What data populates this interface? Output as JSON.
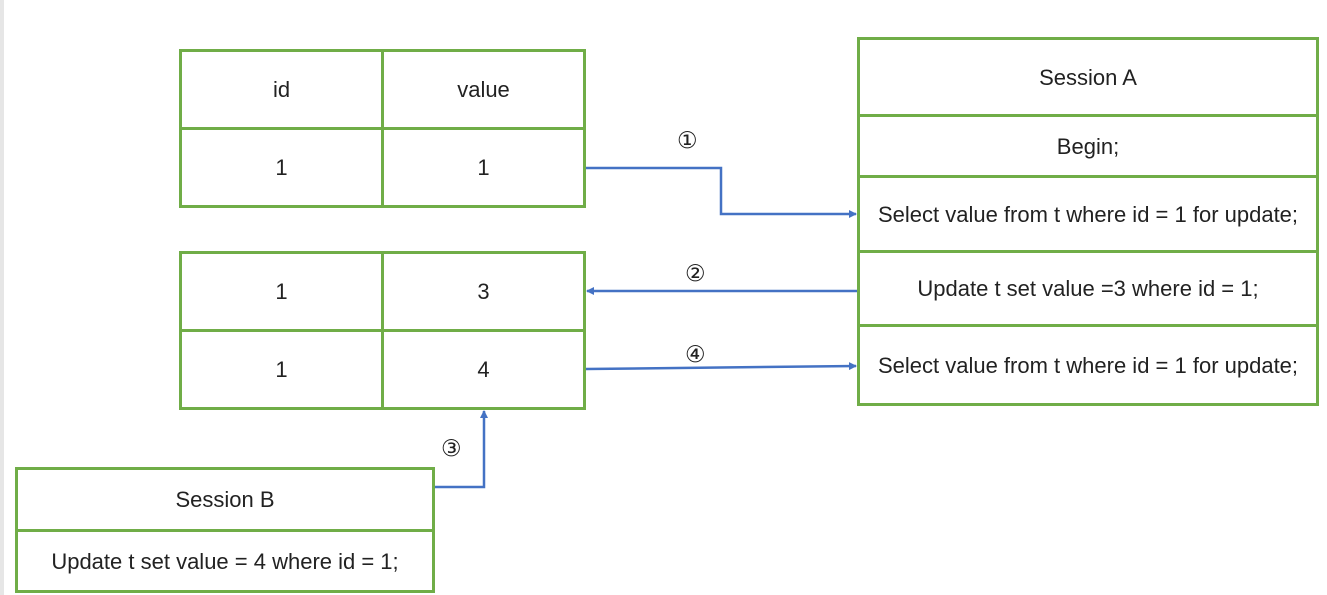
{
  "table_top": {
    "header": [
      "id",
      "value"
    ],
    "row": [
      "1",
      "1"
    ]
  },
  "table_mid": {
    "rows": [
      [
        "1",
        "3"
      ],
      [
        "1",
        "4"
      ]
    ]
  },
  "session_a": {
    "title": "Session A",
    "steps": [
      "Begin;",
      "Select  value from t where id = 1 for update;",
      "Update t set value =3 where id = 1;",
      "Select  value from t where id = 1 for update;"
    ]
  },
  "session_b": {
    "title": "Session B",
    "steps": [
      "Update t set value = 4 where id = 1;"
    ]
  },
  "step_labels": [
    "①",
    "②",
    "③",
    "④"
  ],
  "colors": {
    "border": "#70ad47",
    "arrow": "#4472c4"
  }
}
